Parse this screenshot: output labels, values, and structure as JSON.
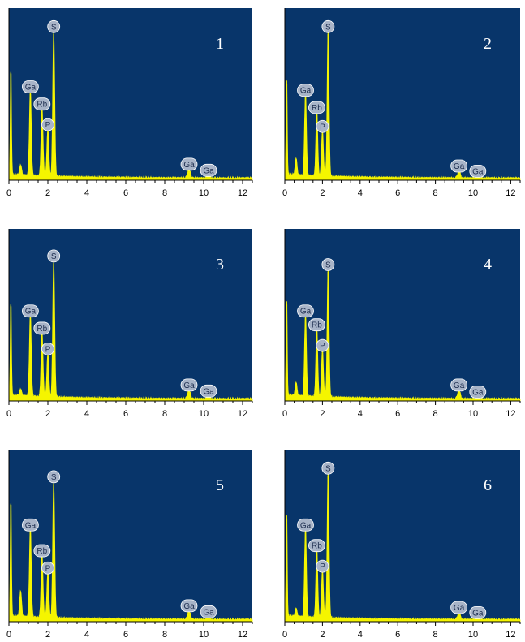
{
  "chart_data": [
    {
      "type": "line",
      "title": "1",
      "x_ticks": [
        "0",
        "2",
        "4",
        "6",
        "8",
        "10",
        "12"
      ],
      "xlim": [
        0,
        12.5
      ],
      "ylim": [
        0,
        1.0
      ],
      "colors": {
        "background": "#08356a",
        "spectrum": "#f5f500",
        "tag": "#a8b4c8"
      },
      "peaks": [
        {
          "x": 0.1,
          "y": 0.62
        },
        {
          "x": 0.6,
          "y": 0.06
        },
        {
          "x": 1.1,
          "y": 0.5
        },
        {
          "x": 1.7,
          "y": 0.4
        },
        {
          "x": 2.0,
          "y": 0.28
        },
        {
          "x": 2.3,
          "y": 0.85
        },
        {
          "x": 9.25,
          "y": 0.05
        },
        {
          "x": 10.25,
          "y": 0.015
        }
      ],
      "annotations": [
        {
          "label": "S",
          "x": 2.3,
          "y": 0.85
        },
        {
          "label": "Ga",
          "x": 1.1,
          "y": 0.5
        },
        {
          "label": "Rb",
          "x": 1.7,
          "y": 0.4
        },
        {
          "label": "P",
          "x": 2.0,
          "y": 0.28
        },
        {
          "label": "Ga",
          "x": 9.25,
          "y": 0.05
        },
        {
          "label": "Ga",
          "x": 10.25,
          "y": 0.015
        }
      ]
    },
    {
      "type": "line",
      "title": "2",
      "x_ticks": [
        "0",
        "2",
        "4",
        "6",
        "8",
        "10",
        "12"
      ],
      "xlim": [
        0,
        12.5
      ],
      "ylim": [
        0,
        1.0
      ],
      "colors": {
        "background": "#08356a",
        "spectrum": "#f5f500",
        "tag": "#a8b4c8"
      },
      "peaks": [
        {
          "x": 0.1,
          "y": 0.56
        },
        {
          "x": 0.6,
          "y": 0.1
        },
        {
          "x": 1.1,
          "y": 0.48
        },
        {
          "x": 1.7,
          "y": 0.38
        },
        {
          "x": 2.0,
          "y": 0.27
        },
        {
          "x": 2.3,
          "y": 0.85
        },
        {
          "x": 9.25,
          "y": 0.04
        },
        {
          "x": 10.25,
          "y": 0.01
        }
      ],
      "annotations": [
        {
          "label": "S",
          "x": 2.3,
          "y": 0.85
        },
        {
          "label": "Ga",
          "x": 1.1,
          "y": 0.48
        },
        {
          "label": "Rb",
          "x": 1.7,
          "y": 0.38
        },
        {
          "label": "P",
          "x": 2.0,
          "y": 0.27
        },
        {
          "label": "Ga",
          "x": 9.25,
          "y": 0.04
        },
        {
          "label": "Ga",
          "x": 10.25,
          "y": 0.01
        }
      ]
    },
    {
      "type": "line",
      "title": "3",
      "x_ticks": [
        "0",
        "2",
        "4",
        "6",
        "8",
        "10",
        "12"
      ],
      "xlim": [
        0,
        12.5
      ],
      "ylim": [
        0,
        1.0
      ],
      "colors": {
        "background": "#08356a",
        "spectrum": "#f5f500",
        "tag": "#a8b4c8"
      },
      "peaks": [
        {
          "x": 0.1,
          "y": 0.55
        },
        {
          "x": 0.6,
          "y": 0.04
        },
        {
          "x": 1.1,
          "y": 0.48
        },
        {
          "x": 1.7,
          "y": 0.38
        },
        {
          "x": 2.0,
          "y": 0.26
        },
        {
          "x": 2.3,
          "y": 0.8
        },
        {
          "x": 9.25,
          "y": 0.05
        },
        {
          "x": 10.25,
          "y": 0.015
        }
      ],
      "annotations": [
        {
          "label": "S",
          "x": 2.3,
          "y": 0.8
        },
        {
          "label": "Ga",
          "x": 1.1,
          "y": 0.48
        },
        {
          "label": "Rb",
          "x": 1.7,
          "y": 0.38
        },
        {
          "label": "P",
          "x": 2.0,
          "y": 0.26
        },
        {
          "label": "Ga",
          "x": 9.25,
          "y": 0.05
        },
        {
          "label": "Ga",
          "x": 10.25,
          "y": 0.015
        }
      ]
    },
    {
      "type": "line",
      "title": "4",
      "x_ticks": [
        "0",
        "2",
        "4",
        "6",
        "8",
        "10",
        "12"
      ],
      "xlim": [
        0,
        12.5
      ],
      "ylim": [
        0,
        1.0
      ],
      "colors": {
        "background": "#08356a",
        "spectrum": "#f5f500",
        "tag": "#a8b4c8"
      },
      "peaks": [
        {
          "x": 0.1,
          "y": 0.56
        },
        {
          "x": 0.6,
          "y": 0.08
        },
        {
          "x": 1.1,
          "y": 0.48
        },
        {
          "x": 1.7,
          "y": 0.4
        },
        {
          "x": 2.0,
          "y": 0.28
        },
        {
          "x": 2.3,
          "y": 0.75
        },
        {
          "x": 9.25,
          "y": 0.05
        },
        {
          "x": 10.25,
          "y": 0.01
        }
      ],
      "annotations": [
        {
          "label": "S",
          "x": 2.3,
          "y": 0.75
        },
        {
          "label": "Ga",
          "x": 1.1,
          "y": 0.48
        },
        {
          "label": "Rb",
          "x": 1.7,
          "y": 0.4
        },
        {
          "label": "P",
          "x": 2.0,
          "y": 0.28
        },
        {
          "label": "Ga",
          "x": 9.25,
          "y": 0.05
        },
        {
          "label": "Ga",
          "x": 10.25,
          "y": 0.01
        }
      ]
    },
    {
      "type": "line",
      "title": "5",
      "x_ticks": [
        "0",
        "2",
        "4",
        "6",
        "8",
        "10",
        "12"
      ],
      "xlim": [
        0,
        12.5
      ],
      "ylim": [
        0,
        1.0
      ],
      "colors": {
        "background": "#08356a",
        "spectrum": "#f5f500",
        "tag": "#a8b4c8"
      },
      "peaks": [
        {
          "x": 0.1,
          "y": 0.68
        },
        {
          "x": 0.6,
          "y": 0.15
        },
        {
          "x": 1.1,
          "y": 0.52
        },
        {
          "x": 1.7,
          "y": 0.37
        },
        {
          "x": 2.0,
          "y": 0.27
        },
        {
          "x": 2.3,
          "y": 0.8
        },
        {
          "x": 9.25,
          "y": 0.05
        },
        {
          "x": 10.25,
          "y": 0.015
        }
      ],
      "annotations": [
        {
          "label": "S",
          "x": 2.3,
          "y": 0.8
        },
        {
          "label": "Ga",
          "x": 1.1,
          "y": 0.52
        },
        {
          "label": "Rb",
          "x": 1.7,
          "y": 0.37
        },
        {
          "label": "P",
          "x": 2.0,
          "y": 0.27
        },
        {
          "label": "Ga",
          "x": 9.25,
          "y": 0.05
        },
        {
          "label": "Ga",
          "x": 10.25,
          "y": 0.015
        }
      ]
    },
    {
      "type": "line",
      "title": "6",
      "x_ticks": [
        "0",
        "2",
        "4",
        "6",
        "8",
        "10",
        "12"
      ],
      "xlim": [
        0,
        12.5
      ],
      "ylim": [
        0,
        1.0
      ],
      "colors": {
        "background": "#08356a",
        "spectrum": "#f5f500",
        "tag": "#a8b4c8"
      },
      "peaks": [
        {
          "x": 0.1,
          "y": 0.6
        },
        {
          "x": 0.6,
          "y": 0.05
        },
        {
          "x": 1.1,
          "y": 0.52
        },
        {
          "x": 1.7,
          "y": 0.4
        },
        {
          "x": 2.0,
          "y": 0.28
        },
        {
          "x": 2.3,
          "y": 0.85
        },
        {
          "x": 9.25,
          "y": 0.04
        },
        {
          "x": 10.25,
          "y": 0.01
        }
      ],
      "annotations": [
        {
          "label": "S",
          "x": 2.3,
          "y": 0.85
        },
        {
          "label": "Ga",
          "x": 1.1,
          "y": 0.52
        },
        {
          "label": "Rb",
          "x": 1.7,
          "y": 0.4
        },
        {
          "label": "P",
          "x": 2.0,
          "y": 0.28
        },
        {
          "label": "Ga",
          "x": 9.25,
          "y": 0.04
        },
        {
          "label": "Ga",
          "x": 10.25,
          "y": 0.01
        }
      ]
    }
  ]
}
